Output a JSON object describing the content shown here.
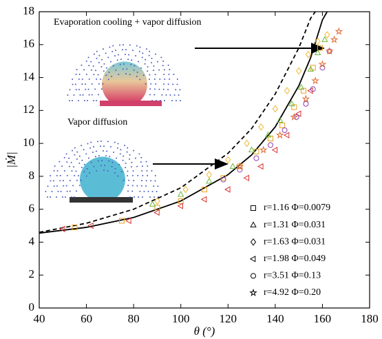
{
  "chart_data": {
    "type": "scatter",
    "x_label": "θ (°)",
    "y_label": "|Ṁ|",
    "xlim": [
      40,
      180
    ],
    "ylim": [
      0,
      18
    ],
    "xticks": [
      40,
      60,
      80,
      100,
      120,
      140,
      160,
      180
    ],
    "yticks": [
      0,
      2,
      4,
      6,
      8,
      10,
      12,
      14,
      16,
      18
    ],
    "legend_position": "lower right",
    "legend_marker_color": "#000000",
    "annotations": [
      "Evaporation cooling + vapor diffusion",
      "Vapor diffusion"
    ],
    "series": [
      {
        "name": "r=1.16 Φ=0.0079",
        "marker": "square",
        "color": "#e8a020",
        "x": [
          55,
          75,
          90,
          100,
          110,
          118,
          125,
          132,
          138,
          143,
          148,
          152,
          156,
          159
        ],
        "y": [
          4.9,
          5.3,
          6.1,
          6.5,
          7.2,
          7.9,
          8.6,
          9.5,
          10.3,
          11.1,
          12.2,
          13.2,
          14.6,
          15.8
        ]
      },
      {
        "name": "r=1.31 Φ=0.031",
        "marker": "triangle",
        "color": "#6cb83a",
        "x": [
          88,
          100,
          112,
          122,
          130,
          137,
          142,
          147,
          151,
          155,
          158,
          161
        ],
        "y": [
          6.3,
          6.9,
          7.7,
          8.6,
          9.6,
          10.5,
          11.4,
          12.4,
          13.4,
          14.5,
          15.5,
          16.3
        ]
      },
      {
        "name": "r=1.63 Φ=0.031",
        "marker": "diamond",
        "color": "#f0b830",
        "x": [
          90,
          102,
          112,
          120,
          128,
          134,
          140,
          145,
          150,
          154,
          158,
          162
        ],
        "y": [
          6.5,
          7.2,
          8.1,
          9.0,
          10.0,
          11.0,
          12.1,
          13.2,
          14.4,
          15.4,
          16.2,
          16.6
        ]
      },
      {
        "name": "r=1.98 Φ=0.049",
        "marker": "triangle-left",
        "color": "#d83030",
        "x": [
          50,
          62,
          78,
          90,
          100,
          110,
          120,
          128,
          134,
          140,
          145,
          150,
          155
        ],
        "y": [
          4.8,
          5.0,
          5.3,
          5.8,
          6.2,
          6.6,
          7.2,
          7.9,
          8.6,
          9.6,
          10.5,
          11.8,
          13.2
        ]
      },
      {
        "name": "r=3.51 Φ=0.13",
        "marker": "circle",
        "color": "#9040b0",
        "x": [
          118,
          125,
          132,
          138,
          144,
          149,
          153,
          156,
          160,
          163
        ],
        "y": [
          7.8,
          8.4,
          9.1,
          9.9,
          10.8,
          11.6,
          12.4,
          13.3,
          14.6,
          15.6
        ]
      },
      {
        "name": "r=4.92 Φ=0.20",
        "marker": "star",
        "color": "#e06a30",
        "x": [
          125,
          135,
          142,
          148,
          153,
          157,
          160,
          163,
          165,
          167
        ],
        "y": [
          8.6,
          9.6,
          10.5,
          11.6,
          12.7,
          13.8,
          14.8,
          15.6,
          16.3,
          16.8
        ]
      }
    ],
    "curves": [
      {
        "style": "solid",
        "color": "#000000",
        "x": [
          40,
          60,
          80,
          100,
          120,
          130,
          140,
          150,
          155,
          160,
          162
        ],
        "y": [
          4.55,
          4.9,
          5.5,
          6.5,
          8.1,
          9.3,
          11.0,
          13.5,
          15.2,
          17.5,
          18
        ]
      },
      {
        "style": "dashed",
        "color": "#000000",
        "x": [
          40,
          60,
          80,
          100,
          120,
          130,
          140,
          150,
          155,
          157
        ],
        "y": [
          4.6,
          5.15,
          6.0,
          7.3,
          9.4,
          10.9,
          13.0,
          15.8,
          17.6,
          18
        ]
      }
    ]
  }
}
